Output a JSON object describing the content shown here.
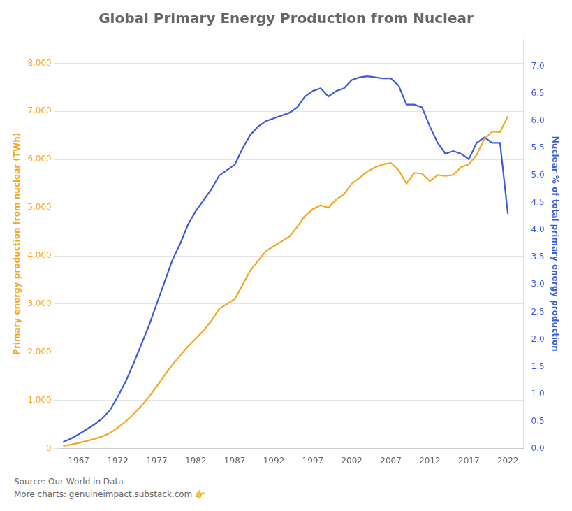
{
  "chart_data": {
    "type": "line",
    "title": "Global Primary Energy Production from Nuclear",
    "ylabel": "Primary energy production from nuclear (TWh)",
    "y2label": "Nuclear % of total primary energy production",
    "annotations": [
      "Source: Our World in Data",
      "More charts: genuineimpact.substack.com 👉"
    ],
    "x": [
      1965,
      1966,
      1967,
      1968,
      1969,
      1970,
      1971,
      1972,
      1973,
      1974,
      1975,
      1976,
      1977,
      1978,
      1979,
      1980,
      1981,
      1982,
      1983,
      1984,
      1985,
      1986,
      1987,
      1988,
      1989,
      1990,
      1991,
      1992,
      1993,
      1994,
      1995,
      1996,
      1997,
      1998,
      1999,
      2000,
      2001,
      2002,
      2003,
      2004,
      2005,
      2006,
      2007,
      2008,
      2009,
      2010,
      2011,
      2012,
      2013,
      2014,
      2015,
      2016,
      2017,
      2018,
      2019,
      2020,
      2021,
      2022
    ],
    "series": [
      {
        "color": "#F5A623",
        "values": [
          55,
          80,
          115,
          155,
          200,
          250,
          320,
          430,
          560,
          710,
          880,
          1070,
          1290,
          1520,
          1740,
          1930,
          2120,
          2280,
          2450,
          2650,
          2900,
          3000,
          3100,
          3400,
          3700,
          3900,
          4100,
          4200,
          4300,
          4400,
          4600,
          4830,
          4970,
          5050,
          5000,
          5170,
          5280,
          5500,
          5620,
          5750,
          5840,
          5900,
          5930,
          5780,
          5500,
          5720,
          5710,
          5550,
          5680,
          5660,
          5680,
          5840,
          5900,
          6100,
          6430,
          6580,
          6570,
          6900
        ]
      },
      {
        "color": "#3B5BDB",
        "axis": "y2",
        "values": [
          0.12,
          0.18,
          0.26,
          0.35,
          0.44,
          0.55,
          0.7,
          0.95,
          1.22,
          1.55,
          1.9,
          2.25,
          2.65,
          3.05,
          3.45,
          3.75,
          4.1,
          4.35,
          4.55,
          4.75,
          5.0,
          5.1,
          5.2,
          5.5,
          5.75,
          5.9,
          6.0,
          6.05,
          6.1,
          6.15,
          6.25,
          6.45,
          6.55,
          6.6,
          6.45,
          6.55,
          6.6,
          6.75,
          6.8,
          6.82,
          6.8,
          6.78,
          6.78,
          6.65,
          6.3,
          6.3,
          6.25,
          5.9,
          5.6,
          5.4,
          5.45,
          5.4,
          5.3,
          5.6,
          5.7,
          5.6,
          5.6,
          4.3
        ]
      }
    ],
    "xlim": [
      1964.5,
      2024
    ],
    "xticks": [
      1967,
      1972,
      1977,
      1982,
      1987,
      1992,
      1997,
      2002,
      2007,
      2012,
      2017,
      2022
    ],
    "ylim": [
      0,
      8500
    ],
    "yticks": [
      0,
      {
        "value": 1000,
        "label": "1,000"
      },
      {
        "value": 2000,
        "label": "2,000"
      },
      {
        "value": 3000,
        "label": "3,000"
      },
      {
        "value": 4000,
        "label": "4,000"
      },
      {
        "value": 5000,
        "label": "5,000"
      },
      {
        "value": 6000,
        "label": "6,000"
      },
      {
        "value": 7000,
        "label": "7,000"
      },
      {
        "value": 8000,
        "label": "8,000"
      }
    ],
    "y2lim": [
      0,
      7.5
    ],
    "y2ticks": [
      {
        "value": 0,
        "label": "0.0"
      },
      0.5,
      {
        "value": 1,
        "label": "1.0"
      },
      1.5,
      {
        "value": 2,
        "label": "2.0"
      },
      2.5,
      {
        "value": 3,
        "label": "3.0"
      },
      3.5,
      {
        "value": 4,
        "label": "4.0"
      },
      4.5,
      {
        "value": 5,
        "label": "5.0"
      },
      5.5,
      {
        "value": 6,
        "label": "6.0"
      },
      6.5,
      {
        "value": 7,
        "label": "7.0"
      }
    ],
    "grid": true
  }
}
